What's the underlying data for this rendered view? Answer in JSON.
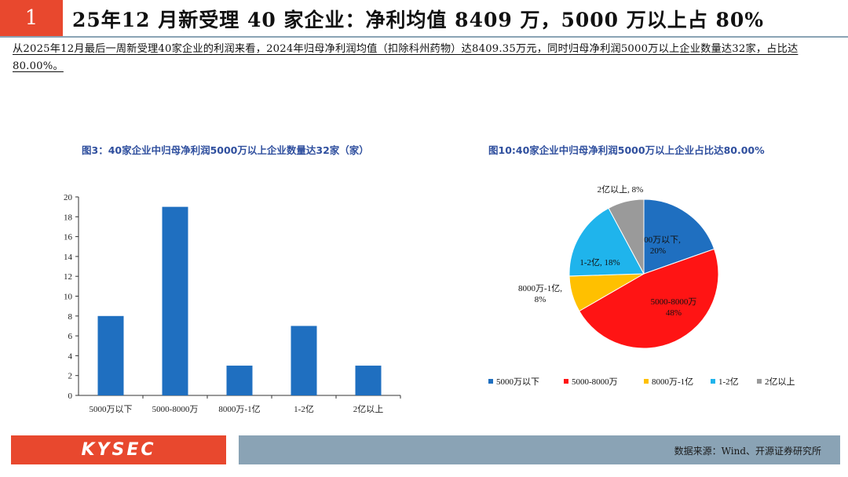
{
  "header": {
    "number": "1",
    "title": "25年12 月新受理 40 家企业：净利均值 8409 万，5000 万以上占 80%"
  },
  "summary": "从2025年12月最后一周新受理40家企业的利润来看，2024年归母净利润均值（扣除科州药物）达8409.35万元，同时归母净利润5000万以上企业数量达32家，占比达80.00%。",
  "footer": {
    "logo": "KYSEC",
    "source": "数据来源：Wind、开源证券研究所"
  },
  "colors": {
    "accent": "#e8482e",
    "bar": "#1f6fc0",
    "footer_bar": "#8aa3b5"
  },
  "chart_data": [
    {
      "type": "bar",
      "title": "图3：40家企业中归母净利润5000万以上企业数量达32家（家）",
      "categories": [
        "5000万以下",
        "5000-8000万",
        "8000万-1亿",
        "1-2亿",
        "2亿以上"
      ],
      "values": [
        8,
        19,
        3,
        7,
        3
      ],
      "ylim": [
        0,
        20
      ],
      "yticks": [
        "0",
        "2",
        "4",
        "6",
        "8",
        "10",
        "12",
        "14",
        "16",
        "18",
        "20"
      ],
      "xlabel": "",
      "ylabel": "",
      "grid": false
    },
    {
      "type": "pie",
      "title": "图10:40家企业中归母净利润5000万以上企业占比达80.00%",
      "slices": [
        {
          "label": "5000万以下",
          "value": 20,
          "color": "#1f6fc0",
          "text": [
            "5000万以下,",
            "20%"
          ]
        },
        {
          "label": "5000-8000万",
          "value": 48,
          "color": "#ff1414",
          "text": [
            "5000-8000万",
            "48%"
          ]
        },
        {
          "label": "8000万-1亿",
          "value": 8,
          "color": "#ffc000",
          "text": [
            "8000万-1亿,",
            "8%"
          ]
        },
        {
          "label": "1-2亿",
          "value": 18,
          "color": "#1fb4ec",
          "text": [
            "1-2亿, 18%"
          ]
        },
        {
          "label": "2亿以上",
          "value": 8,
          "color": "#9a9a9a",
          "text": [
            "2亿以上, 8%"
          ]
        }
      ],
      "legend": "bottom"
    }
  ]
}
